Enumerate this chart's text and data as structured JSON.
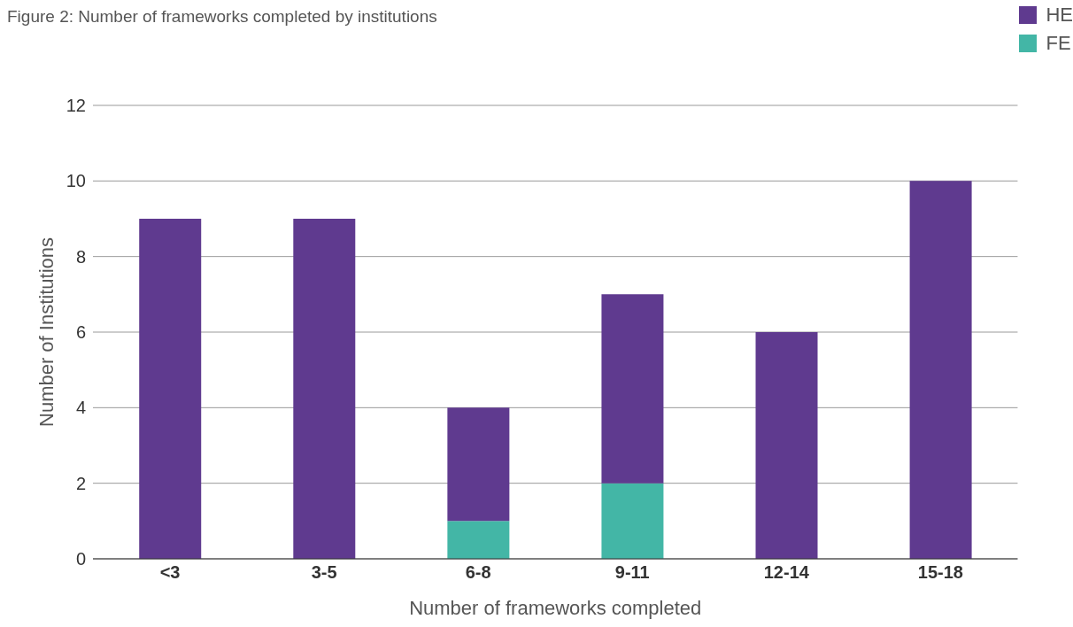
{
  "chart_data": {
    "type": "bar",
    "title": "Figure 2: Number of frameworks completed by institutions",
    "xlabel": "Number of frameworks completed",
    "ylabel": "Number of Institutions",
    "categories": [
      "<3",
      "3-5",
      "6-8",
      "9-11",
      "12-14",
      "15-18"
    ],
    "stacked": true,
    "series": [
      {
        "name": "FE",
        "color": "#43b6a6",
        "values": [
          0,
          0,
          1,
          2,
          0,
          0
        ]
      },
      {
        "name": "HE",
        "color": "#5f3a8f",
        "values": [
          9,
          9,
          3,
          5,
          6,
          10
        ]
      }
    ],
    "ylim": [
      0,
      12
    ],
    "yticks": [
      0,
      2,
      4,
      6,
      8,
      10,
      12
    ],
    "grid": "y",
    "legend": "top right"
  }
}
